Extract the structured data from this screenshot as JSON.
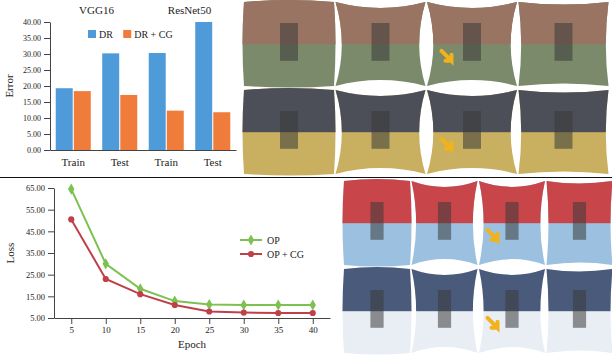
{
  "chart_data": [
    {
      "type": "bar",
      "annotations": [
        "VGG16",
        "ResNet50"
      ],
      "y_label": "Error",
      "categories": [
        "Train",
        "Test",
        "Train",
        "Test"
      ],
      "series": [
        {
          "name": "DR",
          "color": "#4f9ad8",
          "values": [
            19.3,
            30.2,
            30.3,
            40.0
          ]
        },
        {
          "name": "DR + CG",
          "color": "#f07c3c",
          "values": [
            18.4,
            17.2,
            12.3,
            11.8
          ]
        }
      ],
      "ylim": [
        0,
        40
      ],
      "yticks": [
        {
          "value": 0,
          "label": "0.00"
        },
        {
          "value": 5,
          "label": "5.00"
        },
        {
          "value": 10,
          "label": "10.00"
        },
        {
          "value": 15,
          "label": "15.00"
        },
        {
          "value": 20,
          "label": "20.00"
        },
        {
          "value": 25,
          "label": "25.00"
        },
        {
          "value": 30,
          "label": "30.00"
        },
        {
          "value": 35,
          "label": "35.00"
        },
        {
          "value": 40,
          "label": "40.00"
        }
      ],
      "legend": "top"
    },
    {
      "type": "line",
      "x_label": "Epoch",
      "y_label": "Loss",
      "x": [
        5,
        10,
        15,
        20,
        25,
        30,
        35,
        40
      ],
      "series": [
        {
          "name": "OP",
          "color": "#7cc250",
          "marker": "diamond",
          "values": [
            64.5,
            30.0,
            18.5,
            12.8,
            11.2,
            11.0,
            11.0,
            11.0
          ]
        },
        {
          "name": "OP + CG",
          "color": "#c0404a",
          "marker": "circle",
          "values": [
            50.5,
            23.0,
            16.0,
            11.0,
            8.0,
            7.5,
            7.3,
            7.3
          ]
        }
      ],
      "xlim": [
        2.5,
        42.5
      ],
      "xticks": [
        5,
        10,
        15,
        20,
        25,
        30,
        35,
        40
      ],
      "ylim": [
        5,
        65
      ],
      "yticks": [
        {
          "value": 5,
          "label": "5.00"
        },
        {
          "value": 15,
          "label": "15.00"
        },
        {
          "value": 25,
          "label": "25.00"
        },
        {
          "value": 35,
          "label": "35.00"
        },
        {
          "value": 45,
          "label": "45.00"
        },
        {
          "value": 55,
          "label": "55.00"
        },
        {
          "value": 65,
          "label": "65.00"
        }
      ],
      "legend": "right"
    }
  ]
}
